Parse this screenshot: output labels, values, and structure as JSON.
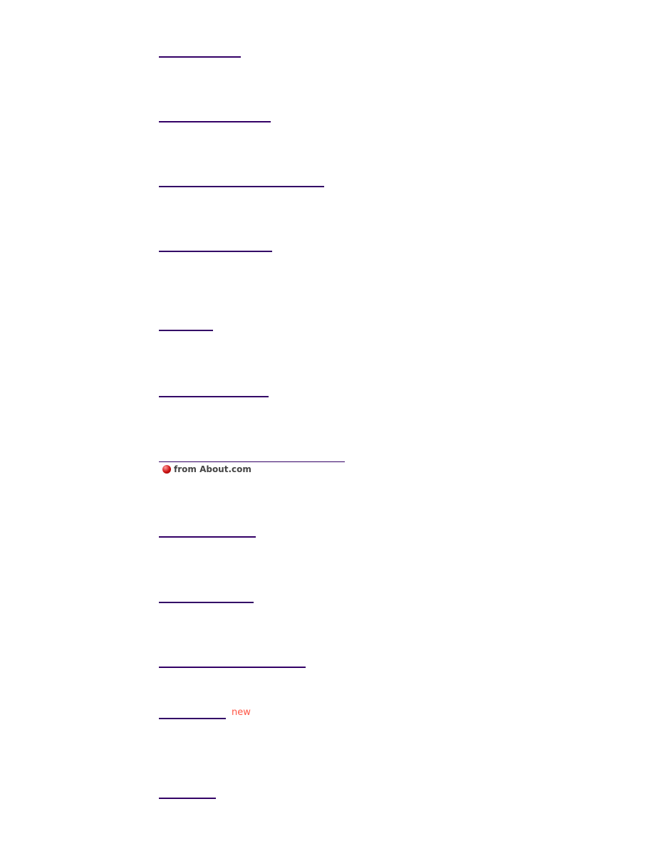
{
  "links": {
    "color": "#330066",
    "count": 12
  },
  "about_badge": {
    "text": "from About.com",
    "icon": "red-ball-icon"
  },
  "new_badge": {
    "text": "new",
    "color": "#ff5544"
  }
}
